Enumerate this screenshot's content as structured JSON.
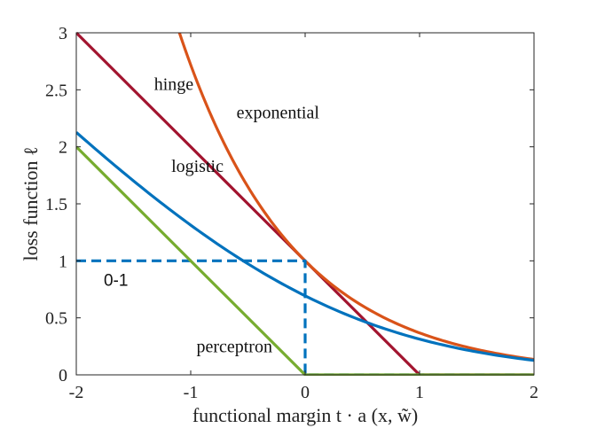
{
  "chart_data": {
    "type": "line",
    "title": "",
    "xlabel": "functional margin t · a (x, w̃)",
    "ylabel": "loss function ℓ",
    "xlim": [
      -2,
      2
    ],
    "ylim": [
      0,
      3
    ],
    "xticks": [
      -2,
      -1,
      0,
      1,
      2
    ],
    "xtick_labels": [
      "-2",
      "-1",
      "0",
      "1",
      "2"
    ],
    "yticks": [
      0,
      0.5,
      1,
      1.5,
      2,
      2.5,
      3
    ],
    "ytick_labels": [
      "0",
      "0.5",
      "1",
      "1.5",
      "2",
      "2.5",
      "3"
    ],
    "grid": false,
    "legend": "none",
    "series": [
      {
        "name": "hinge",
        "color": "#A2142F",
        "style": "solid",
        "x": [
          -2,
          -1.5,
          -1,
          -0.5,
          0,
          0.5,
          1,
          1.5,
          2
        ],
        "y": [
          3,
          2.5,
          2,
          1.5,
          1,
          0.5,
          0,
          0,
          0
        ]
      },
      {
        "name": "exponential",
        "color": "#D95319",
        "style": "solid",
        "x": [
          -1.1,
          -1,
          -0.75,
          -0.5,
          -0.25,
          0,
          0.25,
          0.5,
          0.75,
          1,
          1.25,
          1.5,
          1.75,
          2
        ],
        "y": [
          3.0,
          2.718,
          2.117,
          1.649,
          1.284,
          1,
          0.779,
          0.607,
          0.472,
          0.368,
          0.287,
          0.223,
          0.174,
          0.135
        ]
      },
      {
        "name": "logistic",
        "color": "#0072BD",
        "style": "solid",
        "x": [
          -2,
          -1.5,
          -1,
          -0.5,
          0,
          0.5,
          1,
          1.5,
          2
        ],
        "y": [
          2.127,
          1.701,
          1.313,
          0.974,
          0.693,
          0.474,
          0.313,
          0.201,
          0.127
        ]
      },
      {
        "name": "0-1",
        "color": "#0072BD",
        "style": "dashed",
        "x": [
          -2,
          0,
          0,
          2
        ],
        "y": [
          1,
          1,
          0,
          0
        ]
      },
      {
        "name": "perceptron",
        "color": "#77AC30",
        "style": "solid",
        "x": [
          -2,
          -1,
          0,
          1,
          2
        ],
        "y": [
          2,
          1,
          0,
          0,
          0
        ]
      }
    ],
    "annotations": [
      {
        "text": "hinge",
        "x": -1.32,
        "y": 2.5,
        "font": "serif"
      },
      {
        "text": "exponential",
        "x": -0.6,
        "y": 2.25,
        "font": "serif"
      },
      {
        "text": "logistic",
        "x": -1.17,
        "y": 1.78,
        "font": "serif"
      },
      {
        "text": "0-1",
        "x": -1.76,
        "y": 0.78,
        "font": "sans"
      },
      {
        "text": "perceptron",
        "x": -0.95,
        "y": 0.2,
        "font": "serif"
      }
    ]
  }
}
